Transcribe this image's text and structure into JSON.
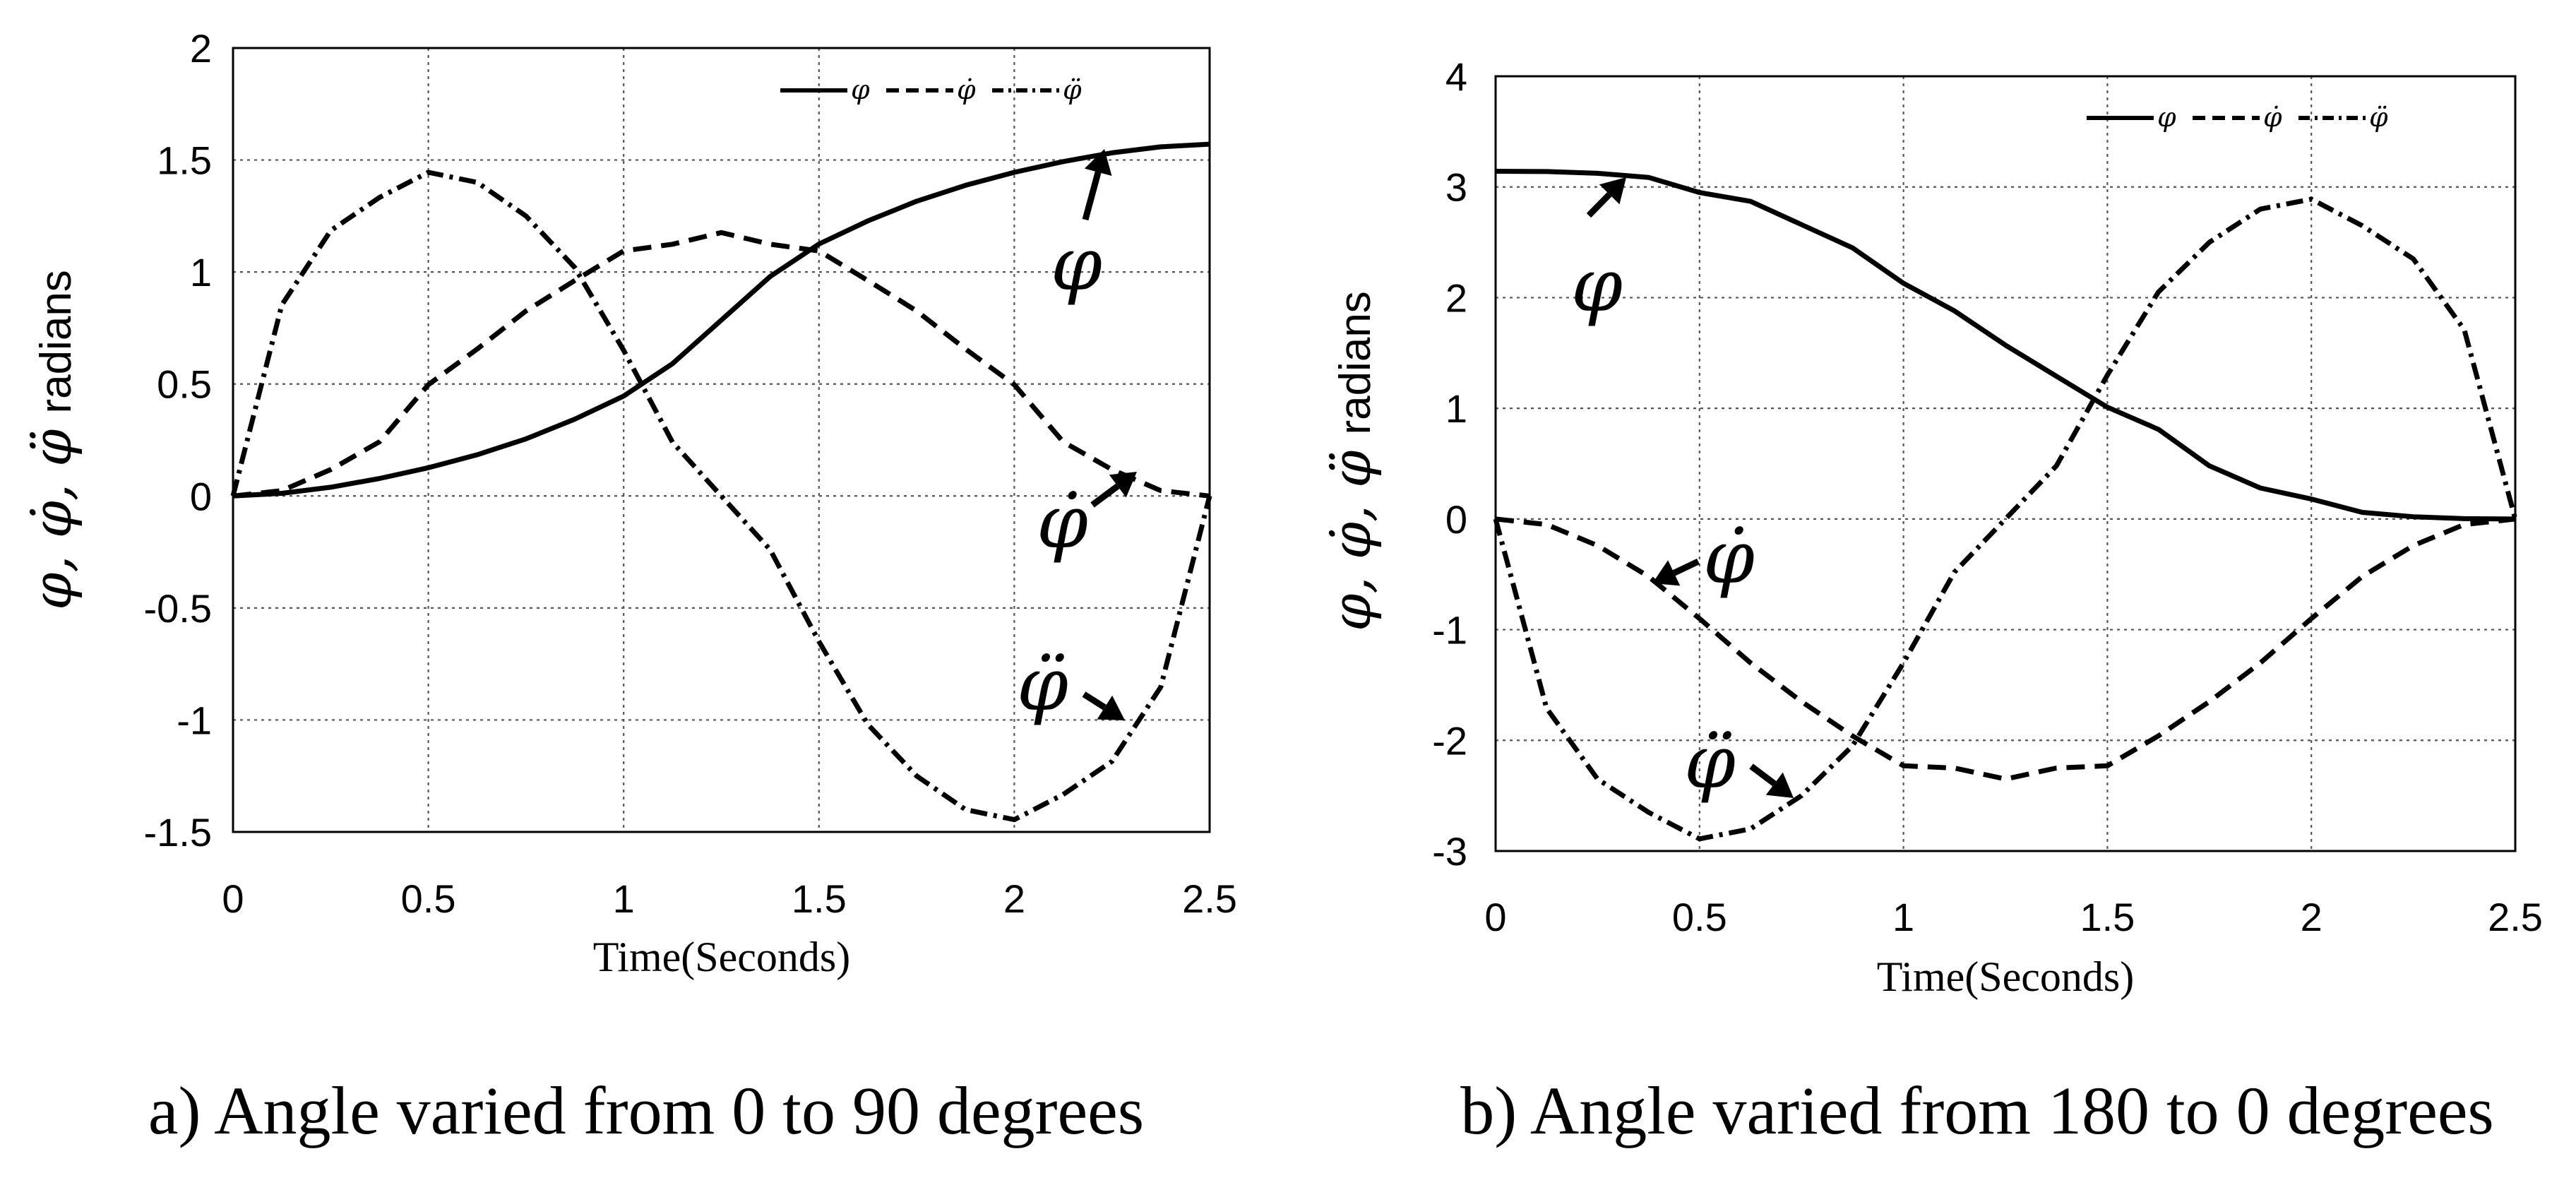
{
  "charts": [
    {
      "id": "a",
      "caption": "a) Angle varied from 0 to 90 degrees",
      "xticks": [
        "0",
        "0.5",
        "1",
        "1.5",
        "2",
        "2.5"
      ],
      "yticks": [
        "2",
        "1.5",
        "1",
        "0.5",
        "0",
        "-0.5",
        "-1",
        "-1.5"
      ],
      "annotations": {
        "phi": "φ",
        "phidot": "φ̇",
        "phiddot": "φ̈"
      }
    },
    {
      "id": "b",
      "caption": "b) Angle varied from 180 to 0 degrees",
      "xticks": [
        "0",
        "0.5",
        "1",
        "1.5",
        "2",
        "2.5"
      ],
      "yticks": [
        "4",
        "3",
        "2",
        "1",
        "0",
        "-1",
        "-2",
        "-3"
      ],
      "annotations": {
        "phi": "φ",
        "phidot": "φ̇",
        "phiddot": "φ̈"
      }
    }
  ],
  "common": {
    "xlabel": "Time(Seconds)",
    "ylabel_symbols": "φ, φ̇, φ̈",
    "ylabel_word": "radians",
    "legend": {
      "phi": "φ",
      "phidot": "φ̇",
      "phiddot": "φ̈"
    }
  },
  "chart_data": [
    {
      "type": "line",
      "title": "a) Angle varied from 0 to 90 degrees",
      "xlabel": "Time(Seconds)",
      "ylabel": "φ, φ̇, φ̈ radians",
      "xlim": [
        0,
        2.5
      ],
      "ylim": [
        -1.5,
        2
      ],
      "grid": true,
      "legend_position": "top-right",
      "x": [
        0,
        0.125,
        0.25,
        0.375,
        0.5,
        0.625,
        0.75,
        0.875,
        1.0,
        1.125,
        1.25,
        1.375,
        1.5,
        1.625,
        1.75,
        1.875,
        2.0,
        2.125,
        2.25,
        2.375,
        2.5
      ],
      "series": [
        {
          "name": "φ",
          "style": "solid",
          "values": [
            0,
            0.012,
            0.039,
            0.078,
            0.126,
            0.184,
            0.255,
            0.343,
            0.446,
            0.591,
            0.785,
            0.98,
            1.125,
            1.228,
            1.316,
            1.387,
            1.445,
            1.493,
            1.532,
            1.559,
            1.571
          ]
        },
        {
          "name": "φ̇",
          "style": "dash",
          "values": [
            0,
            0.024,
            0.118,
            0.242,
            0.497,
            0.656,
            0.826,
            0.962,
            1.094,
            1.124,
            1.176,
            1.124,
            1.094,
            0.962,
            0.826,
            0.656,
            0.497,
            0.242,
            0.118,
            0.024,
            0
          ]
        },
        {
          "name": "φ̈",
          "style": "dashdot",
          "values": [
            0,
            0.853,
            1.185,
            1.333,
            1.445,
            1.4,
            1.25,
            1.02,
            0.65,
            0.24,
            0,
            -0.24,
            -0.65,
            -1.02,
            -1.25,
            -1.4,
            -1.445,
            -1.333,
            -1.185,
            -0.853,
            0
          ]
        }
      ]
    },
    {
      "type": "line",
      "title": "b) Angle varied from 180 to 0 degrees",
      "xlabel": "Time(Seconds)",
      "ylabel": "φ, φ̇, φ̈ radians",
      "xlim": [
        0,
        2.5
      ],
      "ylim": [
        -3,
        4
      ],
      "grid": true,
      "legend_position": "top-right",
      "x": [
        0,
        0.125,
        0.25,
        0.375,
        0.5,
        0.625,
        0.75,
        0.875,
        1.0,
        1.125,
        1.25,
        1.375,
        1.5,
        1.625,
        1.75,
        1.875,
        2.0,
        2.125,
        2.25,
        2.375,
        2.5
      ],
      "series": [
        {
          "name": "φ",
          "style": "solid",
          "values": [
            3.142,
            3.139,
            3.123,
            3.086,
            2.95,
            2.87,
            2.66,
            2.45,
            2.13,
            1.88,
            1.571,
            1.29,
            1.01,
            0.81,
            0.48,
            0.28,
            0.18,
            0.06,
            0.02,
            0.003,
            0
          ]
        },
        {
          "name": "φ̇",
          "style": "dash",
          "values": [
            0,
            -0.05,
            -0.24,
            -0.52,
            -0.9,
            -1.3,
            -1.65,
            -1.96,
            -2.23,
            -2.25,
            -2.35,
            -2.25,
            -2.23,
            -1.96,
            -1.65,
            -1.3,
            -0.9,
            -0.52,
            -0.24,
            -0.05,
            0
          ]
        },
        {
          "name": "φ̈",
          "style": "dashdot",
          "values": [
            0,
            -1.71,
            -2.35,
            -2.65,
            -2.89,
            -2.8,
            -2.5,
            -2.05,
            -1.3,
            -0.48,
            0,
            0.48,
            1.3,
            2.05,
            2.5,
            2.8,
            2.89,
            2.65,
            2.35,
            1.71,
            0
          ]
        }
      ]
    }
  ]
}
